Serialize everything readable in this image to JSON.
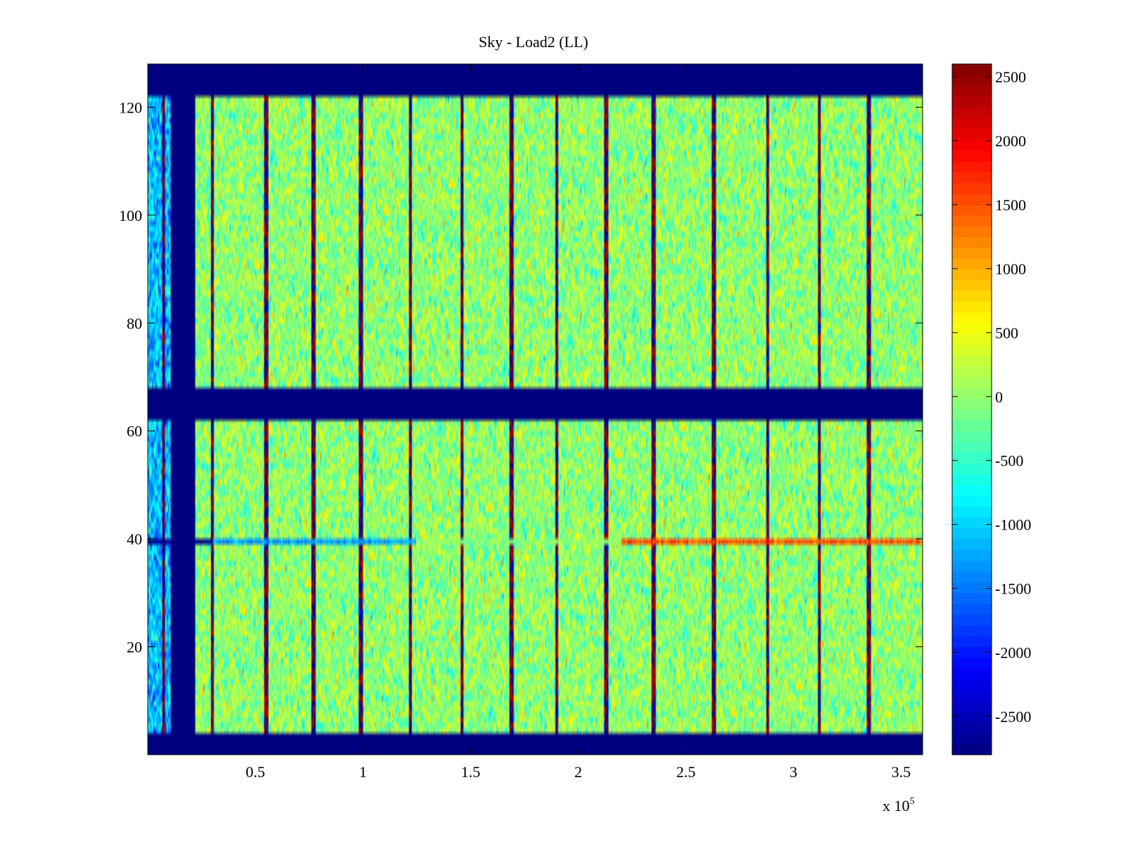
{
  "chart_data": {
    "type": "heatmap",
    "title": "Sky - Load2 (LL)",
    "xlabel": "",
    "ylabel": "",
    "x_multiplier_label": "x 10",
    "x_multiplier_exponent": "5",
    "xlim": [
      0,
      3.6
    ],
    "ylim": [
      0,
      128
    ],
    "x_ticks": [
      {
        "value": 0.5,
        "label": "0.5"
      },
      {
        "value": 1,
        "label": "1"
      },
      {
        "value": 1.5,
        "label": "1.5"
      },
      {
        "value": 2,
        "label": "2"
      },
      {
        "value": 2.5,
        "label": "2.5"
      },
      {
        "value": 3,
        "label": "3"
      },
      {
        "value": 3.5,
        "label": "3.5"
      }
    ],
    "y_ticks": [
      {
        "value": 20,
        "label": "20"
      },
      {
        "value": 40,
        "label": "40"
      },
      {
        "value": 60,
        "label": "60"
      },
      {
        "value": 80,
        "label": "80"
      },
      {
        "value": 100,
        "label": "100"
      },
      {
        "value": 120,
        "label": "120"
      }
    ],
    "colorbar": {
      "colormap": "jet",
      "clim": [
        -2800,
        2600
      ],
      "ticks": [
        {
          "value": 2500,
          "label": "2500"
        },
        {
          "value": 2000,
          "label": "2000"
        },
        {
          "value": 1500,
          "label": "1500"
        },
        {
          "value": 1000,
          "label": "1000"
        },
        {
          "value": 500,
          "label": "500"
        },
        {
          "value": 0,
          "label": "0"
        },
        {
          "value": -500,
          "label": "-500"
        },
        {
          "value": -1000,
          "label": "-1000"
        },
        {
          "value": -1500,
          "label": "-1500"
        },
        {
          "value": -2000,
          "label": "-2000"
        },
        {
          "value": -2500,
          "label": "-2500"
        }
      ]
    },
    "background_value": -2800,
    "noise_level": 0,
    "noise_spread": 550,
    "valid_row_ranges": [
      [
        4,
        61
      ],
      [
        68,
        121
      ]
    ],
    "valid_column_range": [
      0.0,
      3.6
    ],
    "gap_columns": [
      [
        0.11,
        0.22
      ]
    ],
    "vertical_stripe_positions": [
      0.075,
      0.3,
      0.55,
      0.77,
      0.99,
      1.22,
      1.46,
      1.69,
      1.9,
      2.13,
      2.35,
      2.63,
      2.88,
      3.12,
      3.35
    ],
    "anomaly_row": {
      "row": 39,
      "segments": [
        {
          "x_start": 0.0,
          "x_end": 0.3,
          "value": -2800
        },
        {
          "x_start": 0.3,
          "x_end": 1.25,
          "value": -1300
        },
        {
          "x_start": 1.25,
          "x_end": 2.2,
          "value": 0
        },
        {
          "x_start": 2.2,
          "x_end": 3.6,
          "value": 1500
        }
      ]
    }
  }
}
